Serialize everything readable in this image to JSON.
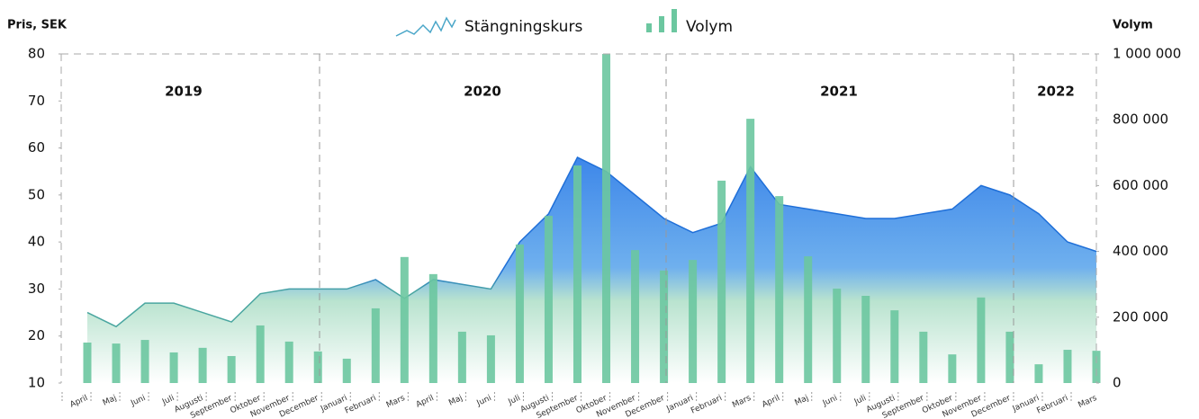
{
  "chart_data": {
    "type": "combo",
    "ylabel": "Pris, SEK",
    "y2label": "Volym",
    "categories": [
      "April",
      "Maj",
      "Juni",
      "Juli",
      "Augusti",
      "September",
      "Oktober",
      "November",
      "December",
      "Januari",
      "Februari",
      "Mars",
      "April",
      "Maj",
      "Juni",
      "Juli",
      "Augusti",
      "September",
      "Oktober",
      "November",
      "December",
      "Januari",
      "Februari",
      "Mars",
      "April",
      "Maj",
      "Juni",
      "Juli",
      "Augusti",
      "September",
      "Oktober",
      "November",
      "December",
      "Januari",
      "Februari",
      "Mars"
    ],
    "years": [
      "2019",
      "2020",
      "2021",
      "2022"
    ],
    "series": [
      {
        "name": "Stängningskurs",
        "type": "area",
        "axis": "y",
        "color": "#1f6fd8",
        "values": [
          25,
          22,
          27,
          27,
          25,
          23,
          29,
          30,
          30,
          30,
          32,
          28,
          32,
          31,
          30,
          40,
          46,
          58,
          55,
          50,
          45,
          42,
          44,
          56,
          48,
          47,
          46,
          45,
          45,
          46,
          47,
          52,
          50,
          46,
          40,
          38
        ]
      },
      {
        "name": "Volym",
        "type": "bar",
        "axis": "y2",
        "color": "#6cc7a0",
        "values": [
          123000,
          120000,
          131000,
          93000,
          107000,
          82000,
          175000,
          126000,
          96000,
          74000,
          227000,
          383000,
          331000,
          156000,
          145000,
          421000,
          508000,
          661000,
          1000000,
          404000,
          342000,
          374000,
          615000,
          803000,
          568000,
          385000,
          287000,
          265000,
          221000,
          156000,
          87000,
          260000,
          156000,
          57000,
          101000,
          98000
        ]
      }
    ],
    "ylim": [
      10,
      80
    ],
    "yticks": [
      10,
      20,
      30,
      40,
      50,
      60,
      70,
      80
    ],
    "y2lim": [
      0,
      1000000
    ],
    "y2ticks": [
      0,
      {
        "value": 200000,
        "label": "200 000"
      },
      {
        "value": 400000,
        "label": "400 000"
      },
      {
        "value": 600000,
        "label": "600 000"
      },
      {
        "value": 800000,
        "label": "800 000"
      },
      {
        "value": 1000000,
        "label": "1 000 000"
      }
    ]
  }
}
